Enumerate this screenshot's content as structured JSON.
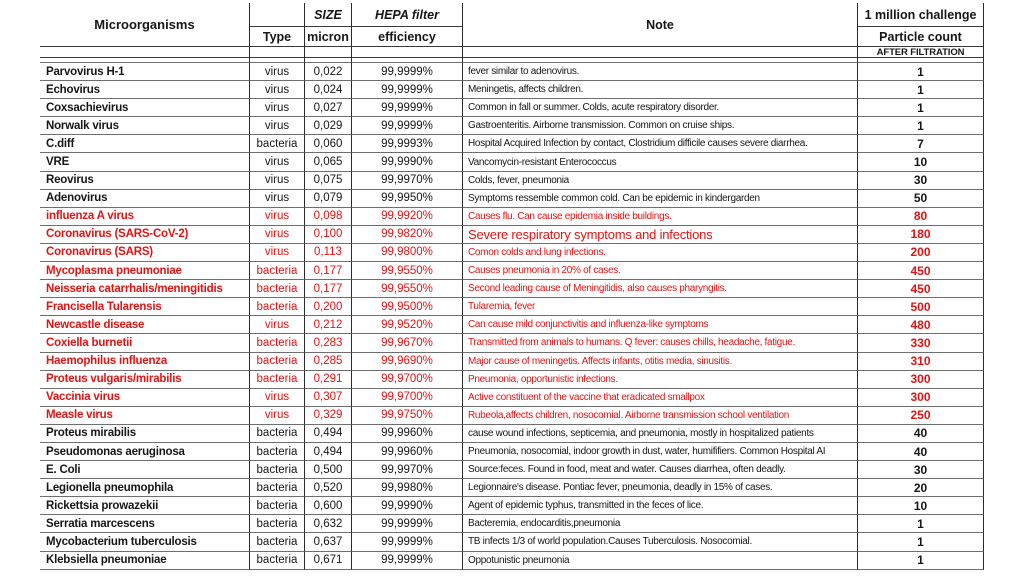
{
  "colors": {
    "highlight_red": "#e11414",
    "text_black": "#161616"
  },
  "header": {
    "microorganisms": "Microorganisms",
    "type": "Type",
    "size_top": "SIZE",
    "size_bottom": "micron",
    "hepa_top": "HEPA filter",
    "hepa_bottom": "efficiency",
    "note": "Note",
    "challenge": "1 million challenge",
    "particle_count": "Particle count",
    "after_filtration": "AFTER FILTRATION"
  },
  "table": {
    "columns": [
      "Microorganisms",
      "Type",
      "SIZE micron",
      "HEPA filter efficiency",
      "Note",
      "1 million challenge Particle count AFTER FILTRATION"
    ],
    "rows": [
      {
        "name": "Parvovirus H-1",
        "type": "virus",
        "micron": "0,022",
        "efficiency": "99,9999%",
        "note": "fever similar to adenovirus.",
        "count": "1",
        "red": false,
        "big_note": false
      },
      {
        "name": "Echovirus",
        "type": "virus",
        "micron": "0,024",
        "efficiency": "99,9999%",
        "note": "Meningetis, affects children.",
        "count": "1",
        "red": false,
        "big_note": false
      },
      {
        "name": "Coxsachievirus",
        "type": "virus",
        "micron": "0,027",
        "efficiency": "99,9999%",
        "note": "Common in fall or summer. Colds, acute respiratory disorder.",
        "count": "1",
        "red": false,
        "big_note": false
      },
      {
        "name": "Norwalk virus",
        "type": "virus",
        "micron": "0,029",
        "efficiency": "99,9999%",
        "note": "Gastroenteritis. Airborne transmission. Common on cruise ships.",
        "count": "1",
        "red": false,
        "big_note": false
      },
      {
        "name": "C.diff",
        "type": "bacteria",
        "micron": "0,060",
        "efficiency": "99,9993%",
        "note": "Hospital Acquired Infection by contact, Clostridium difficile causes severe diarrhea.",
        "count": "7",
        "red": false,
        "big_note": false
      },
      {
        "name": "VRE",
        "type": "virus",
        "micron": "0,065",
        "efficiency": "99,9990%",
        "note": "Vancomycin-resistant Enterococcus",
        "count": "10",
        "red": false,
        "big_note": false
      },
      {
        "name": "Reovirus",
        "type": "virus",
        "micron": "0,075",
        "efficiency": "99,9970%",
        "note": "Colds, fever, pneumonia",
        "count": "30",
        "red": false,
        "big_note": false
      },
      {
        "name": "Adenovirus",
        "type": "virus",
        "micron": "0,079",
        "efficiency": "99,9950%",
        "note": "Symptoms ressemble common cold. Can be epidemic in kindergarden",
        "count": "50",
        "red": false,
        "big_note": false
      },
      {
        "name": "influenza A virus",
        "type": "virus",
        "micron": "0,098",
        "efficiency": "99,9920%",
        "note": "Causes flu. Can cause epidemia inside buildings.",
        "count": "80",
        "red": true,
        "big_note": false
      },
      {
        "name": "Coronavirus (SARS-CoV-2)",
        "type": "virus",
        "micron": "0,100",
        "efficiency": "99,9820%",
        "note": "Severe respiratory symptoms and infections",
        "count": "180",
        "red": true,
        "big_note": true
      },
      {
        "name": "Coronavirus (SARS)",
        "type": "virus",
        "micron": "0,113",
        "efficiency": "99,9800%",
        "note": "Comon colds and lung infections.",
        "count": "200",
        "red": true,
        "big_note": false
      },
      {
        "name": "Mycoplasma pneumoniae",
        "type": "bacteria",
        "micron": "0,177",
        "efficiency": "99,9550%",
        "note": "Causes pneumonia in 20% of cases.",
        "count": "450",
        "red": true,
        "big_note": false
      },
      {
        "name": "Neisseria catarrhalis/meningitidis",
        "type": "bacteria",
        "micron": "0,177",
        "efficiency": "99,9550%",
        "note": "Second leading cause of Meningitidis, also causes pharyngitis.",
        "count": "450",
        "red": true,
        "big_note": false
      },
      {
        "name": "Francisella Tularensis",
        "type": "bacteria",
        "micron": "0,200",
        "efficiency": "99,9500%",
        "note": "Tularemia, fever",
        "count": "500",
        "red": true,
        "big_note": false
      },
      {
        "name": "Newcastle disease",
        "type": "virus",
        "micron": "0,212",
        "efficiency": "99,9520%",
        "note": "Can cause mild conjunctivitis and influenza-like symptoms",
        "count": "480",
        "red": true,
        "big_note": false
      },
      {
        "name": "Coxiella burnetii",
        "type": "bacteria",
        "micron": "0,283",
        "efficiency": "99,9670%",
        "note": "Transmitted from animals to humans.  Q fever: causes chills, headache, fatigue.",
        "count": "330",
        "red": true,
        "big_note": false
      },
      {
        "name": "Haemophilus influenza",
        "type": "bacteria",
        "micron": "0,285",
        "efficiency": "99,9690%",
        "note": "Major cause of meningetis. Affects infants, otitis media, sinusitis.",
        "count": "310",
        "red": true,
        "big_note": false
      },
      {
        "name": "Proteus vulgaris/mirabilis",
        "type": "bacteria",
        "micron": "0,291",
        "efficiency": "99,9700%",
        "note": "Pneumonia, opportunistic infections.",
        "count": "300",
        "red": true,
        "big_note": false
      },
      {
        "name": "Vaccinia virus",
        "type": "virus",
        "micron": "0,307",
        "efficiency": "99,9700%",
        "note": "Active constituent of the vaccine that eradicated smallpox",
        "count": "300",
        "red": true,
        "big_note": false
      },
      {
        "name": "Measle virus",
        "type": "virus",
        "micron": "0,329",
        "efficiency": "99,9750%",
        "note": "Rubeola,affects children, nosocomial. Airborne transmission school ventilation",
        "count": "250",
        "red": true,
        "big_note": false
      },
      {
        "name": "Proteus mirabilis",
        "type": "bacteria",
        "micron": "0,494",
        "efficiency": "99,9960%",
        "note": "cause wound infections, septicemia, and pneumonia, mostly in hospitalized patients",
        "count": "40",
        "red": false,
        "big_note": false
      },
      {
        "name": "Pseudomonas aeruginosa",
        "type": "bacteria",
        "micron": "0,494",
        "efficiency": "99,9960%",
        "note": "Pneumonia, nosocomial, indoor growth in dust, water, humififiers. Common Hospital AI",
        "count": "40",
        "red": false,
        "big_note": false
      },
      {
        "name": "E. Coli",
        "type": "bacteria",
        "micron": "0,500",
        "efficiency": "99,9970%",
        "note": "Source:feces. Found in food, meat and water. Causes diarrhea, often deadly.",
        "count": "30",
        "red": false,
        "big_note": false
      },
      {
        "name": "Legionella pneumophila",
        "type": "bacteria",
        "micron": "0,520",
        "efficiency": "99,9980%",
        "note": "Legionnaire's disease. Pontiac fever, pneumonia, deadly in 15% of cases.",
        "count": "20",
        "red": false,
        "big_note": false
      },
      {
        "name": "Rickettsia prowazekii",
        "type": "bacteria",
        "micron": "0,600",
        "efficiency": "99,9990%",
        "note": "Agent of epidemic typhus, transmitted in the feces of lice.",
        "count": "10",
        "red": false,
        "big_note": false
      },
      {
        "name": "Serratia marcescens",
        "type": "bacteria",
        "micron": "0,632",
        "efficiency": "99,9999%",
        "note": "Bacteremia, endocarditis,pneumonia",
        "count": "1",
        "red": false,
        "big_note": false
      },
      {
        "name": "Mycobacterium tuberculosis",
        "type": "bacteria",
        "micron": "0,637",
        "efficiency": "99,9999%",
        "note": "TB infects 1/3 of world population.Causes Tuberculosis. Nosocomial.",
        "count": "1",
        "red": false,
        "big_note": false
      },
      {
        "name": "Klebsiella pneumoniae",
        "type": "bacteria",
        "micron": "0,671",
        "efficiency": "99,9999%",
        "note": "Oppotunistic pneumonia",
        "count": "1",
        "red": false,
        "big_note": false
      }
    ]
  }
}
